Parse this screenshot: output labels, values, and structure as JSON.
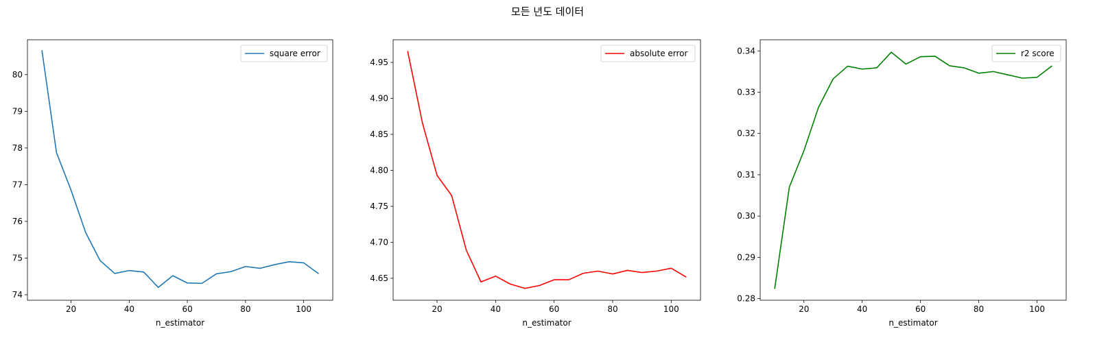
{
  "suptitle": "모든 년도 데이터",
  "chart_data": [
    {
      "type": "line",
      "xlabel": "n_estimator",
      "ylabel": "",
      "xlim": [
        5,
        110
      ],
      "ylim": [
        73.85,
        80.95
      ],
      "xticks": [
        20,
        40,
        60,
        80,
        100
      ],
      "yticks": [
        74,
        75,
        76,
        77,
        78,
        79,
        80
      ],
      "ytick_labels": [
        "74",
        "75",
        "76",
        "77",
        "78",
        "79",
        "80"
      ],
      "legend_position": "top-right",
      "series": [
        {
          "name": "square error",
          "color": "#1f77b4",
          "x": [
            10,
            15,
            20,
            25,
            30,
            35,
            40,
            45,
            50,
            55,
            60,
            65,
            70,
            75,
            80,
            85,
            90,
            95,
            100,
            105
          ],
          "y": [
            80.65,
            77.87,
            76.85,
            75.7,
            74.93,
            74.58,
            74.66,
            74.62,
            74.2,
            74.52,
            74.32,
            74.31,
            74.57,
            74.63,
            74.77,
            74.72,
            74.82,
            74.9,
            74.87,
            74.58
          ]
        }
      ]
    },
    {
      "type": "line",
      "xlabel": "n_estimator",
      "ylabel": "",
      "xlim": [
        5,
        110
      ],
      "ylim": [
        4.6195,
        4.9815
      ],
      "xticks": [
        20,
        40,
        60,
        80,
        100
      ],
      "yticks": [
        4.65,
        4.7,
        4.75,
        4.8,
        4.85,
        4.9,
        4.95
      ],
      "ytick_labels": [
        "4.65",
        "4.70",
        "4.75",
        "4.80",
        "4.85",
        "4.90",
        "4.95"
      ],
      "legend_position": "top-right",
      "series": [
        {
          "name": "absolute error",
          "color": "#ff0000",
          "x": [
            10,
            15,
            20,
            25,
            30,
            35,
            40,
            45,
            50,
            55,
            60,
            65,
            70,
            75,
            80,
            85,
            90,
            95,
            100,
            105
          ],
          "y": [
            4.965,
            4.866,
            4.793,
            4.765,
            4.689,
            4.645,
            4.653,
            4.642,
            4.636,
            4.64,
            4.648,
            4.648,
            4.657,
            4.66,
            4.656,
            4.661,
            4.658,
            4.66,
            4.664,
            4.652
          ]
        }
      ]
    },
    {
      "type": "line",
      "xlabel": "n_estimator",
      "ylabel": "",
      "xlim": [
        5,
        110
      ],
      "ylim": [
        0.2796,
        0.3427
      ],
      "xticks": [
        20,
        40,
        60,
        80,
        100
      ],
      "yticks": [
        0.28,
        0.29,
        0.3,
        0.31,
        0.32,
        0.33,
        0.34
      ],
      "ytick_labels": [
        "0.28",
        "0.29",
        "0.30",
        "0.31",
        "0.32",
        "0.33",
        "0.34"
      ],
      "legend_position": "top-right",
      "series": [
        {
          "name": "r2 score",
          "color": "#008000",
          "x": [
            10,
            15,
            20,
            25,
            30,
            35,
            40,
            45,
            50,
            55,
            60,
            65,
            70,
            75,
            80,
            85,
            90,
            95,
            100,
            105
          ],
          "y": [
            0.2825,
            0.307,
            0.3158,
            0.3263,
            0.3332,
            0.3363,
            0.3356,
            0.3359,
            0.3397,
            0.3368,
            0.3386,
            0.3387,
            0.3364,
            0.3359,
            0.3346,
            0.335,
            0.3342,
            0.3334,
            0.3336,
            0.3363
          ]
        }
      ]
    }
  ]
}
